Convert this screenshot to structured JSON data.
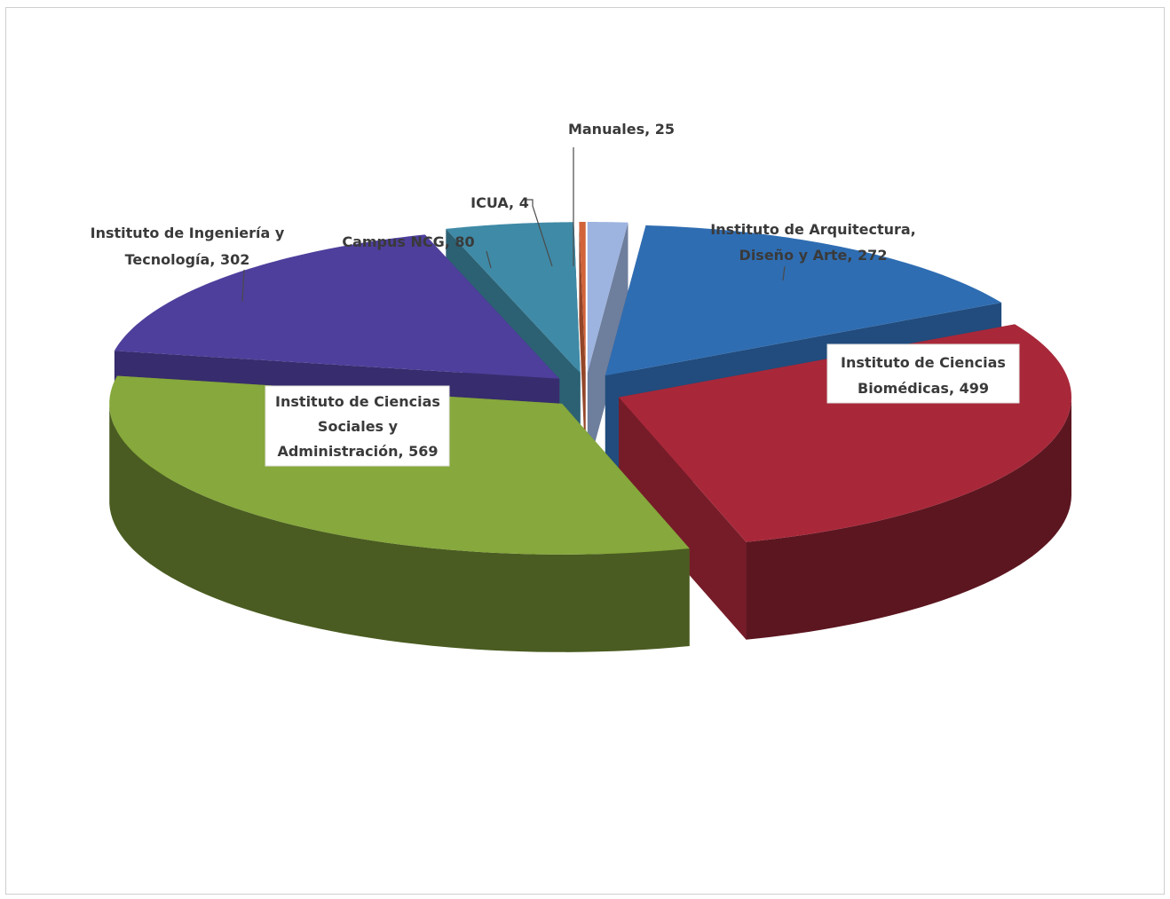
{
  "chart_data": {
    "type": "pie",
    "title": "",
    "slices": [
      {
        "name": "Manuales",
        "value": 25,
        "label": "Manuales, 25",
        "color": "#9db4e0"
      },
      {
        "name": "Instituto de Arquitectura, Diseño y Arte",
        "value": 272,
        "label_lines": [
          "Instituto de Arquitectura,",
          "Diseño y Arte, 272"
        ],
        "color": "#2f6db2"
      },
      {
        "name": "Instituto de Ciencias Biomédicas",
        "value": 499,
        "label_lines": [
          "Instituto de Ciencias",
          "Biomédicas, 499"
        ],
        "color": "#a8283a"
      },
      {
        "name": "Instituto de Ciencias Sociales y Administración",
        "value": 569,
        "label_lines": [
          "Instituto de Ciencias",
          "Sociales y",
          "Administración, 569"
        ],
        "color": "#86a83c"
      },
      {
        "name": "Instituto de Ingeniería y Tecnología",
        "value": 302,
        "label_lines": [
          "Instituto de Ingeniería y",
          "Tecnología, 302"
        ],
        "color": "#4e3f9c"
      },
      {
        "name": "Campus NCG",
        "value": 80,
        "label": "Campus NCG, 80",
        "color": "#3f8aa6"
      },
      {
        "name": "ICUA",
        "value": 4,
        "label": "ICUA, 4",
        "color": "#d2643a"
      }
    ],
    "legend": "none",
    "style": "3d-exploded"
  }
}
